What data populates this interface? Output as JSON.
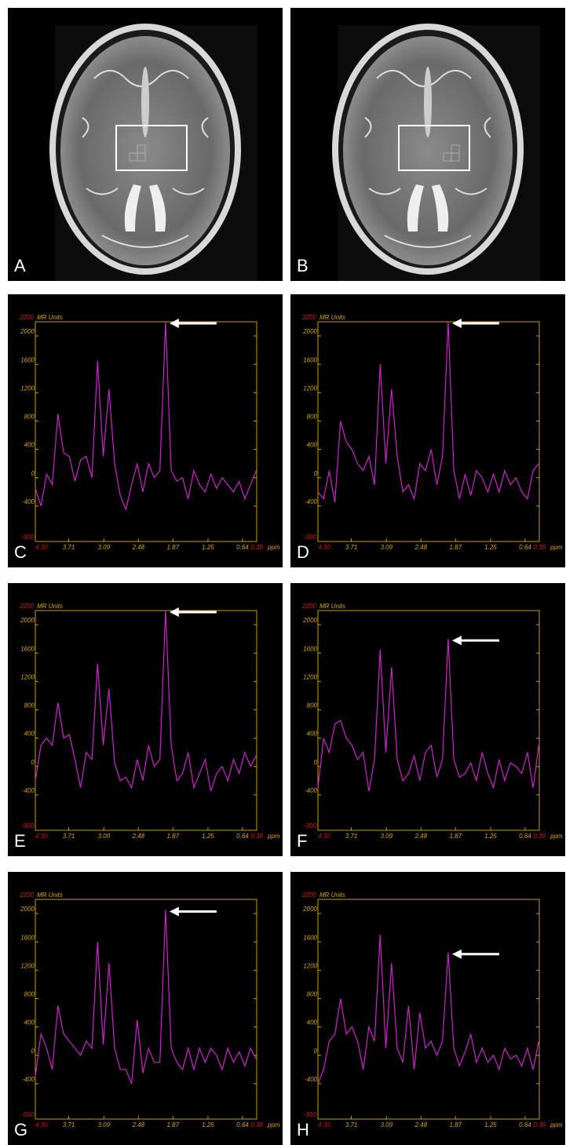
{
  "image_panels": [
    {
      "label": "A"
    },
    {
      "label": "B"
    }
  ],
  "chart_data": [
    {
      "type": "line",
      "panel": "C",
      "ylabel": "MR Units",
      "xlabel": "ppm",
      "color": "#d21fd2",
      "xlim": [
        4.3,
        0.39
      ],
      "ylim": [
        -900,
        2200
      ],
      "xticks": [
        {
          "value": 4.3,
          "label": "4.30"
        },
        3.71,
        3.09,
        2.48,
        1.87,
        1.25,
        0.64,
        0.39
      ],
      "yticks": [
        -900,
        -400,
        0,
        400,
        800,
        1200,
        1600,
        2000,
        2200
      ],
      "x": [
        4.3,
        4.2,
        4.1,
        4.0,
        3.9,
        3.8,
        3.7,
        3.6,
        3.5,
        3.4,
        3.3,
        3.2,
        3.1,
        3.0,
        2.9,
        2.8,
        2.7,
        2.6,
        2.5,
        2.4,
        2.3,
        2.2,
        2.1,
        2.0,
        1.9,
        1.8,
        1.7,
        1.6,
        1.5,
        1.4,
        1.3,
        1.2,
        1.1,
        1.0,
        0.9,
        0.8,
        0.7,
        0.6,
        0.5,
        0.4
      ],
      "values": [
        -150,
        -400,
        50,
        -100,
        900,
        350,
        300,
        -50,
        250,
        300,
        0,
        1650,
        300,
        1250,
        200,
        -250,
        -450,
        -100,
        200,
        -200,
        200,
        0,
        100,
        2200,
        100,
        -50,
        0,
        -300,
        100,
        -100,
        -200,
        50,
        -150,
        0,
        -100,
        -200,
        -50,
        -300,
        -100,
        100
      ]
    },
    {
      "type": "line",
      "panel": "D",
      "ylabel": "MR Units",
      "xlabel": "ppm",
      "color": "#d21fd2",
      "xlim": [
        4.3,
        0.39
      ],
      "ylim": [
        -900,
        2200
      ],
      "xticks": [
        {
          "value": 4.3,
          "label": "4.30"
        },
        3.71,
        3.09,
        2.48,
        1.87,
        1.25,
        0.64,
        0.39
      ],
      "yticks": [
        -900,
        -400,
        0,
        400,
        800,
        1200,
        1600,
        2000,
        2200
      ],
      "x": [
        4.3,
        4.2,
        4.1,
        4.0,
        3.9,
        3.8,
        3.7,
        3.6,
        3.5,
        3.4,
        3.3,
        3.2,
        3.1,
        3.0,
        2.9,
        2.8,
        2.7,
        2.6,
        2.5,
        2.4,
        2.3,
        2.2,
        2.1,
        2.0,
        1.9,
        1.8,
        1.7,
        1.6,
        1.5,
        1.4,
        1.3,
        1.2,
        1.1,
        1.0,
        0.9,
        0.8,
        0.7,
        0.6,
        0.5,
        0.4
      ],
      "values": [
        -200,
        -300,
        100,
        -350,
        800,
        500,
        400,
        200,
        100,
        300,
        -100,
        1600,
        200,
        1250,
        300,
        -200,
        -100,
        -300,
        200,
        100,
        400,
        -100,
        300,
        2200,
        100,
        -300,
        50,
        -250,
        100,
        0,
        -200,
        50,
        -200,
        100,
        -100,
        0,
        -200,
        -300,
        100,
        200
      ]
    },
    {
      "type": "line",
      "panel": "E",
      "ylabel": "MR Units",
      "xlabel": "ppm",
      "color": "#d21fd2",
      "xlim": [
        4.3,
        0.39
      ],
      "ylim": [
        -900,
        2200
      ],
      "xticks": [
        {
          "value": 4.3,
          "label": "4.30"
        },
        3.71,
        3.09,
        2.48,
        1.87,
        1.25,
        0.64,
        0.39
      ],
      "yticks": [
        -900,
        -400,
        0,
        400,
        800,
        1200,
        1600,
        2000,
        2200
      ],
      "x": [
        4.3,
        4.2,
        4.1,
        4.0,
        3.9,
        3.8,
        3.7,
        3.6,
        3.5,
        3.4,
        3.3,
        3.2,
        3.1,
        3.0,
        2.9,
        2.8,
        2.7,
        2.6,
        2.5,
        2.4,
        2.3,
        2.2,
        2.1,
        2.0,
        1.9,
        1.8,
        1.7,
        1.6,
        1.5,
        1.4,
        1.3,
        1.2,
        1.1,
        1.0,
        0.9,
        0.8,
        0.7,
        0.6,
        0.5,
        0.4
      ],
      "values": [
        -200,
        300,
        400,
        300,
        900,
        400,
        450,
        100,
        -300,
        200,
        100,
        1450,
        300,
        1100,
        50,
        -200,
        -150,
        -300,
        100,
        -200,
        300,
        0,
        100,
        2200,
        300,
        -200,
        -100,
        200,
        -300,
        -100,
        100,
        -350,
        -100,
        0,
        -200,
        100,
        -100,
        200,
        0,
        150
      ]
    },
    {
      "type": "line",
      "panel": "F",
      "ylabel": "MR Units",
      "xlabel": "ppm",
      "color": "#d21fd2",
      "xlim": [
        4.3,
        0.39
      ],
      "ylim": [
        -900,
        2200
      ],
      "xticks": [
        {
          "value": 4.3,
          "label": "4.30"
        },
        3.71,
        3.09,
        2.48,
        1.87,
        1.25,
        0.64,
        0.39
      ],
      "yticks": [
        -900,
        -400,
        0,
        400,
        800,
        1200,
        1600,
        2000,
        2200
      ],
      "x": [
        4.3,
        4.2,
        4.1,
        4.0,
        3.9,
        3.8,
        3.7,
        3.6,
        3.5,
        3.4,
        3.3,
        3.2,
        3.1,
        3.0,
        2.9,
        2.8,
        2.7,
        2.6,
        2.5,
        2.4,
        2.3,
        2.2,
        2.1,
        2.0,
        1.9,
        1.8,
        1.7,
        1.6,
        1.5,
        1.4,
        1.3,
        1.2,
        1.1,
        1.0,
        0.9,
        0.8,
        0.7,
        0.6,
        0.5,
        0.4
      ],
      "values": [
        -300,
        400,
        200,
        600,
        650,
        400,
        300,
        100,
        200,
        -350,
        100,
        1650,
        200,
        1400,
        100,
        -200,
        -100,
        150,
        -200,
        200,
        300,
        -150,
        100,
        1800,
        100,
        -150,
        -100,
        50,
        -200,
        200,
        -100,
        -300,
        100,
        -200,
        50,
        0,
        -100,
        200,
        -300,
        300
      ]
    },
    {
      "type": "line",
      "panel": "G",
      "ylabel": "MR Units",
      "xlabel": "ppm",
      "color": "#d21fd2",
      "xlim": [
        4.3,
        0.39
      ],
      "ylim": [
        -900,
        2200
      ],
      "xticks": [
        {
          "value": 4.3,
          "label": "4.30"
        },
        3.71,
        3.09,
        2.48,
        1.87,
        1.25,
        0.64,
        0.39
      ],
      "yticks": [
        -900,
        -400,
        0,
        400,
        800,
        1200,
        1600,
        2000,
        2200
      ],
      "x": [
        4.3,
        4.2,
        4.1,
        4.0,
        3.9,
        3.8,
        3.7,
        3.6,
        3.5,
        3.4,
        3.3,
        3.2,
        3.1,
        3.0,
        2.9,
        2.8,
        2.7,
        2.6,
        2.5,
        2.4,
        2.3,
        2.2,
        2.1,
        2.0,
        1.9,
        1.8,
        1.7,
        1.6,
        1.5,
        1.4,
        1.3,
        1.2,
        1.1,
        1.0,
        0.9,
        0.8,
        0.7,
        0.6,
        0.5,
        0.4
      ],
      "values": [
        -300,
        300,
        100,
        -200,
        700,
        300,
        200,
        100,
        0,
        200,
        100,
        1600,
        150,
        1300,
        100,
        -200,
        -200,
        -400,
        500,
        -250,
        100,
        -100,
        -100,
        2050,
        100,
        -100,
        -200,
        100,
        -200,
        100,
        -100,
        100,
        0,
        -200,
        100,
        -100,
        50,
        -150,
        100,
        -50
      ]
    },
    {
      "type": "line",
      "panel": "H",
      "ylabel": "MR Units",
      "xlabel": "ppm",
      "color": "#d21fd2",
      "xlim": [
        4.3,
        0.39
      ],
      "ylim": [
        -900,
        2200
      ],
      "xticks": [
        {
          "value": 4.3,
          "label": "4.30"
        },
        3.71,
        3.09,
        2.48,
        1.87,
        1.25,
        0.64,
        0.39
      ],
      "yticks": [
        -900,
        -400,
        0,
        400,
        800,
        1200,
        1600,
        2000,
        2200
      ],
      "x": [
        4.3,
        4.2,
        4.1,
        4.0,
        3.9,
        3.8,
        3.7,
        3.6,
        3.5,
        3.4,
        3.3,
        3.2,
        3.1,
        3.0,
        2.9,
        2.8,
        2.7,
        2.6,
        2.5,
        2.4,
        2.3,
        2.2,
        2.1,
        2.0,
        1.9,
        1.8,
        1.7,
        1.6,
        1.5,
        1.4,
        1.3,
        1.2,
        1.1,
        1.0,
        0.9,
        0.8,
        0.7,
        0.6,
        0.5,
        0.4
      ],
      "values": [
        -400,
        -200,
        200,
        300,
        800,
        300,
        400,
        200,
        -200,
        400,
        200,
        1700,
        100,
        1300,
        100,
        -100,
        700,
        -200,
        600,
        100,
        200,
        0,
        200,
        1450,
        100,
        -150,
        50,
        300,
        -100,
        100,
        -100,
        0,
        -200,
        100,
        -50,
        0,
        -150,
        100,
        -200,
        200
      ]
    }
  ]
}
